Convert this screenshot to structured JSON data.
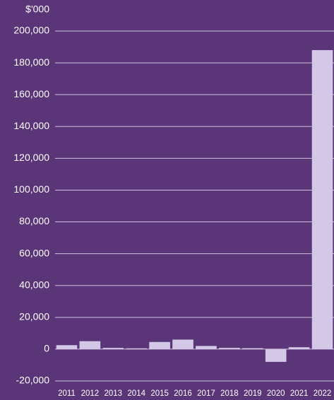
{
  "chart_data": {
    "type": "bar",
    "y_label": "$'000",
    "categories": [
      "2011",
      "2012",
      "2013",
      "2014",
      "2015",
      "2016",
      "2017",
      "2018",
      "2019",
      "2020",
      "2021",
      "2022"
    ],
    "values": [
      2500,
      5000,
      800,
      500,
      4500,
      6000,
      2000,
      800,
      600,
      -8000,
      1200,
      188000
    ],
    "color": "#d3c9e6",
    "ylim": [
      -20000,
      200000
    ],
    "yticks": [
      {
        "value": -20000,
        "label": "-20,000"
      },
      0,
      {
        "value": 20000,
        "label": "20,000"
      },
      {
        "value": 40000,
        "label": "40,000"
      },
      {
        "value": 60000,
        "label": "60,000"
      },
      {
        "value": 80000,
        "label": "80,000"
      },
      {
        "value": 100000,
        "label": "100,000"
      },
      {
        "value": 120000,
        "label": "120,000"
      },
      {
        "value": 140000,
        "label": "140,000"
      },
      {
        "value": 160000,
        "label": "160,000"
      },
      {
        "value": 180000,
        "label": "180,000"
      },
      {
        "value": 200000,
        "label": "200,000"
      }
    ],
    "grid": true
  }
}
